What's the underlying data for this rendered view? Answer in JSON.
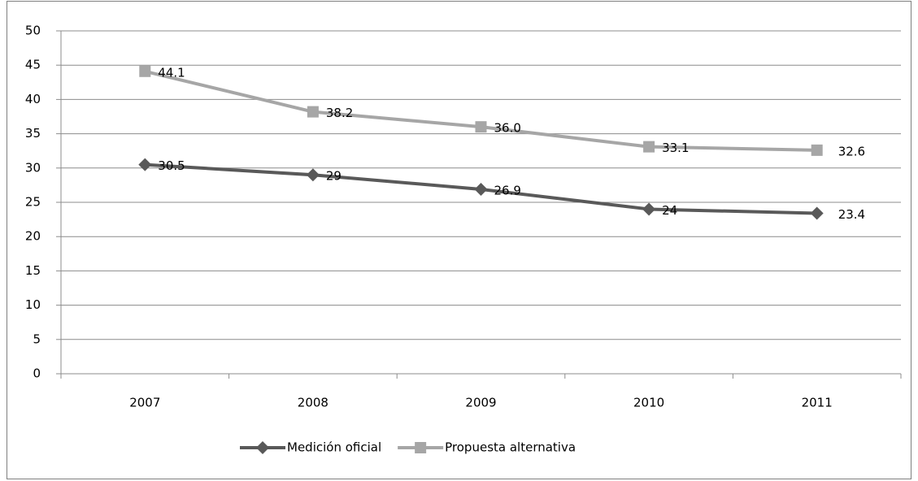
{
  "chart_data": {
    "type": "line",
    "categories": [
      "2007",
      "2008",
      "2009",
      "2010",
      "2011"
    ],
    "series": [
      {
        "name": "Medición oficial",
        "color": "#595959",
        "marker": "diamond",
        "values": [
          30.5,
          29,
          26.9,
          24,
          23.4
        ]
      },
      {
        "name": "Propuesta alternativa",
        "color": "#a6a6a6",
        "marker": "square",
        "values": [
          44.1,
          38.2,
          36.0,
          33.1,
          32.6
        ],
        "value_labels": [
          "44.1",
          "38.2",
          "36.0",
          "33.1",
          "32.6"
        ]
      }
    ],
    "ylim": [
      0,
      50
    ],
    "yticks": [
      0,
      5,
      10,
      15,
      20,
      25,
      30,
      35,
      40,
      45,
      50
    ],
    "grid": true,
    "legend": "bottom"
  }
}
